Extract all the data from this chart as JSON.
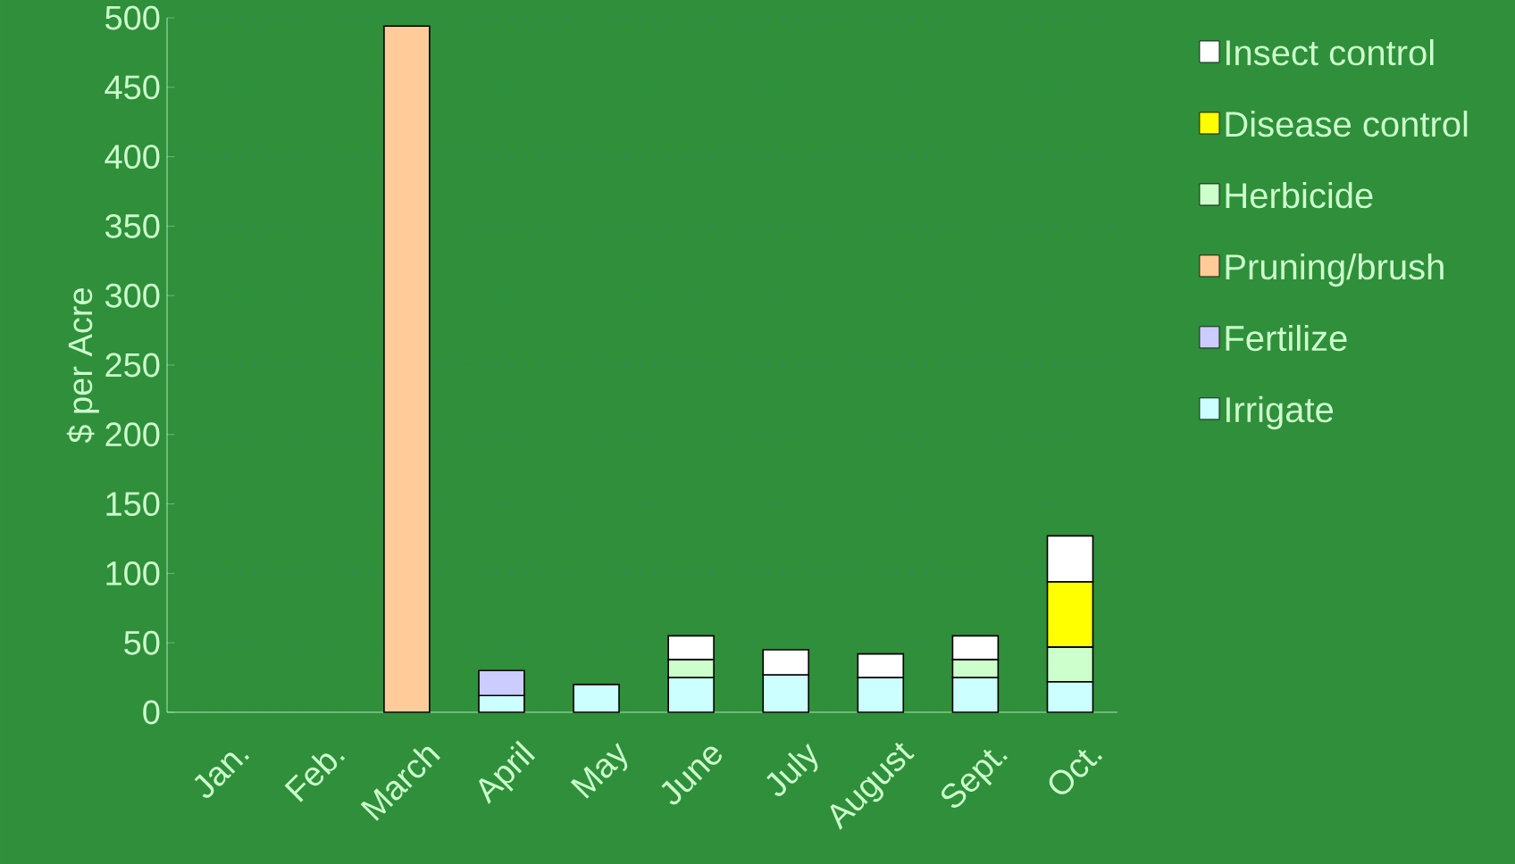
{
  "chart_data": {
    "type": "bar",
    "stacked": true,
    "ylabel": "$ per Acre",
    "categories": [
      "Jan.",
      "Feb.",
      "March",
      "April",
      "May",
      "June",
      "July",
      "August",
      "Sept.",
      "Oct."
    ],
    "series": [
      {
        "name": "Irrigate",
        "color": "#ccffff",
        "values": [
          null,
          null,
          null,
          12,
          20,
          25,
          27,
          25,
          25,
          22
        ]
      },
      {
        "name": "Fertilize",
        "color": "#ccccff",
        "values": [
          null,
          null,
          null,
          18,
          null,
          null,
          null,
          null,
          null,
          null
        ]
      },
      {
        "name": "Pruning/brush",
        "color": "#ffcc99",
        "values": [
          null,
          null,
          494,
          null,
          null,
          null,
          null,
          null,
          null,
          null
        ]
      },
      {
        "name": "Herbicide",
        "color": "#ccffcc",
        "values": [
          null,
          null,
          null,
          null,
          null,
          13,
          null,
          null,
          13,
          25
        ]
      },
      {
        "name": "Disease control",
        "color": "#ffff00",
        "values": [
          null,
          null,
          null,
          null,
          null,
          null,
          null,
          null,
          null,
          47
        ]
      },
      {
        "name": "Insect control",
        "color": "#ffffff",
        "values": [
          null,
          null,
          null,
          null,
          null,
          17,
          18,
          17,
          17,
          33
        ]
      }
    ],
    "ylim": [
      0,
      500
    ],
    "yticks": [
      0,
      50,
      100,
      150,
      200,
      250,
      300,
      350,
      400,
      450,
      500
    ],
    "grid": "y",
    "legend": "right"
  }
}
